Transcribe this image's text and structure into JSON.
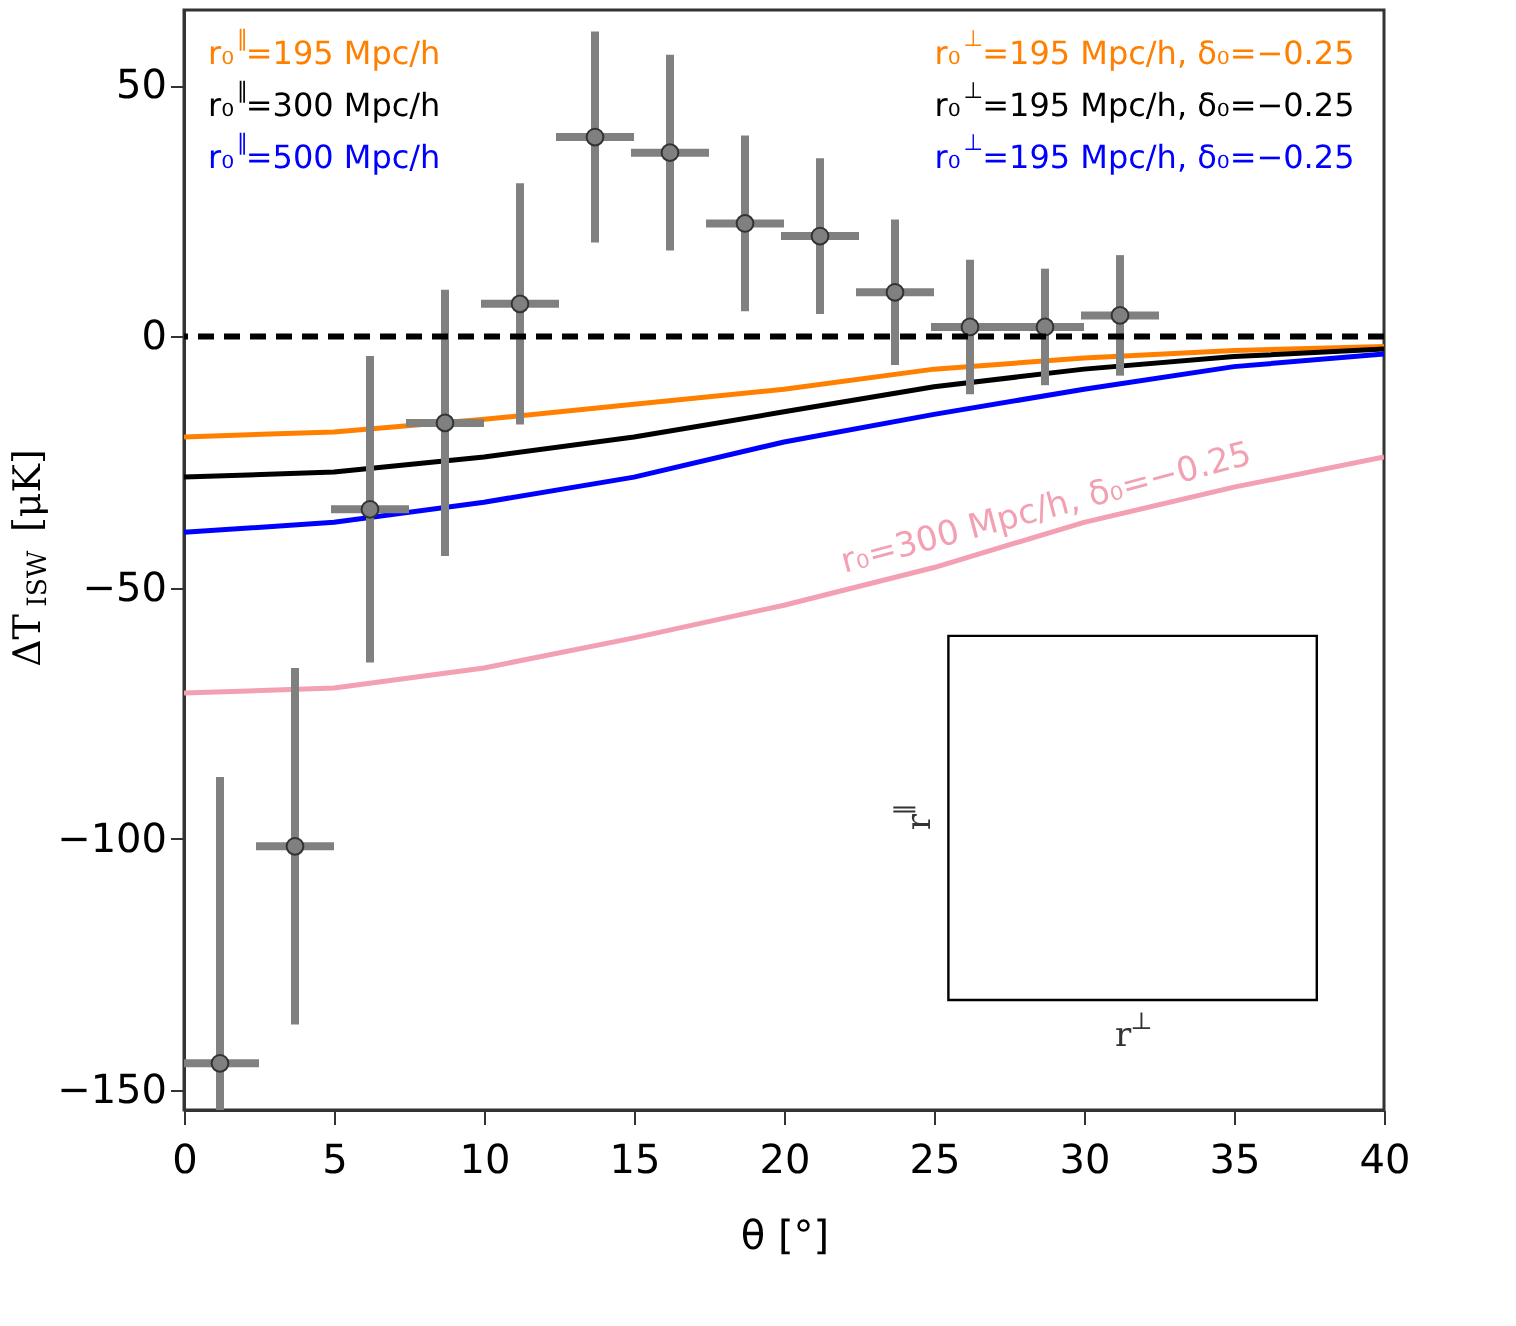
{
  "chart_data": {
    "type": "line",
    "xlabel": "θ [°]",
    "ylabel": "ΔT$_{ISW}$ [μK]",
    "xlim": [
      0,
      40
    ],
    "ylim": [
      -154,
      65
    ],
    "xticks": [
      0,
      5,
      10,
      15,
      20,
      25,
      30,
      35,
      40
    ],
    "yticks": [
      -150,
      -100,
      -50,
      0,
      50
    ],
    "legend": "top left",
    "series": [
      {
        "name": "r₀$^{∥}$=195 Mpc/h",
        "color": "#ff8000",
        "x": [
          0,
          5,
          10,
          15,
          20,
          25,
          30,
          35,
          40
        ],
        "values": [
          -20,
          -19,
          -16.5,
          -13.5,
          -10.5,
          -6.5,
          -4.3,
          -2.8,
          -2
        ]
      },
      {
        "name": "r₀$^{∥}$=300 Mpc/h",
        "color": "#000000",
        "x": [
          0,
          5,
          10,
          15,
          20,
          25,
          30,
          35,
          40
        ],
        "values": [
          -28,
          -27,
          -24,
          -20,
          -15,
          -10,
          -6.5,
          -4,
          -2.5
        ]
      },
      {
        "name": "r₀$^{∥}$=500 Mpc/h",
        "color": "#0000ff",
        "x": [
          0,
          5,
          10,
          15,
          20,
          25,
          30,
          35,
          40
        ],
        "values": [
          -39,
          -37,
          -33,
          -28,
          -21,
          -15.5,
          -10.5,
          -6,
          -3.5
        ]
      },
      {
        "color": "#f2a0b2",
        "x": [
          0,
          5,
          10,
          15,
          20,
          25,
          30,
          35,
          40
        ],
        "values": [
          -71,
          -70,
          -66,
          -60,
          -53.5,
          -46,
          -37,
          -30,
          -24
        ]
      },
      {
        "color": "#808080",
        "type": "scatter",
        "marker": "circle",
        "x": [
          1.2,
          3.7,
          6.2,
          8.7,
          11.2,
          13.7,
          16.2,
          18.7,
          21.2,
          23.7,
          26.2,
          28.7,
          31.2
        ],
        "values": [
          -144.7,
          -101.5,
          -34.4,
          -17.2,
          6.5,
          39.7,
          36.6,
          22.5,
          20,
          8.8,
          1.9,
          1.9,
          4.2
        ],
        "errors": [
          57,
          35.5,
          30.5,
          26.5,
          24,
          21,
          19.5,
          17.5,
          15.5,
          14.5,
          13.4,
          11.6,
          12
        ],
        "xerrors": [
          1.3,
          1.3,
          1.3,
          1.3,
          1.3,
          1.3,
          1.3,
          1.3,
          1.3,
          1.3,
          1.3,
          1.3,
          1.3
        ]
      }
    ],
    "ref_lines": [
      {
        "axis": "y",
        "value": 0,
        "color": "#000000",
        "line_style": "dashed"
      }
    ],
    "annotations": [
      "r₀$^{⊥}$=195 Mpc/h, δ₀=−0.25",
      "r₀$^{⊥}$=195 Mpc/h, δ₀=−0.25",
      "r₀$^{⊥}$=195 Mpc/h, δ₀=−0.25",
      {
        "text": "r₀=300 Mpc/h, δ₀=−0.25",
        "x": 29,
        "y": -40
      },
      "r$^{∥}$",
      "r$^{⊥}$"
    ]
  }
}
